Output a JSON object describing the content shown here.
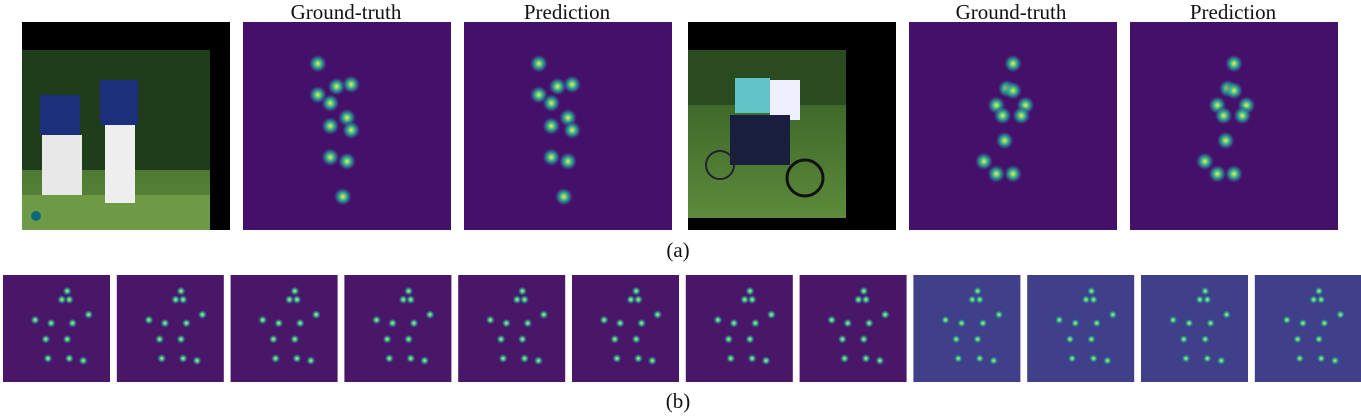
{
  "figure": {
    "headings": [
      "Ground-truth",
      "Prediction",
      "Ground-truth",
      "Prediction"
    ],
    "subfigure_labels": [
      "(a)",
      "(b)"
    ]
  }
}
